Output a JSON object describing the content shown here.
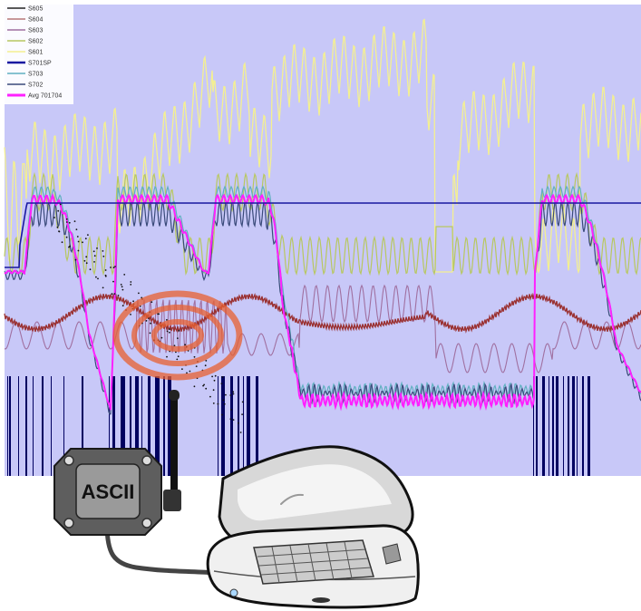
{
  "legend": {
    "items": [
      {
        "label": "S605",
        "color": "#222222"
      },
      {
        "label": "S604",
        "color": "#b87878"
      },
      {
        "label": "S603",
        "color": "#a070a0"
      },
      {
        "label": "S602",
        "color": "#b8c860"
      },
      {
        "label": "S601",
        "color": "#f4f090"
      },
      {
        "label": "S701SP",
        "color": "#1818a0"
      },
      {
        "label": "S703",
        "color": "#60b0c0"
      },
      {
        "label": "S702",
        "color": "#3a4a7a"
      },
      {
        "label": "Avg 701704",
        "color": "#ff20ff"
      }
    ]
  },
  "device": {
    "label": "ASCII"
  },
  "colors": {
    "plot_background": "#c8c8f8",
    "event_bars": "#000060",
    "target_rings": "#e86030"
  }
}
